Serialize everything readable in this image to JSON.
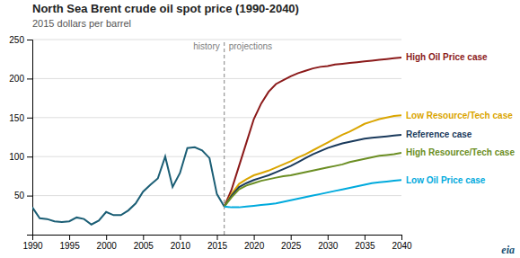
{
  "chart_data": {
    "type": "line",
    "title": "North Sea Brent crude oil spot price (1990-2040)",
    "subtitle": "2015 dollars per barrel",
    "xlim": [
      1990,
      2040
    ],
    "xticks": [
      1990,
      1995,
      2000,
      2005,
      2010,
      2015,
      2020,
      2025,
      2030,
      2035,
      2040
    ],
    "ylim": [
      0,
      250
    ],
    "yticks": [
      50,
      100,
      150,
      200,
      250
    ],
    "grid": true,
    "series": [
      {
        "color": "#1B5E75",
        "x": [
          1990,
          1991,
          1992,
          1993,
          1994,
          1995,
          1996,
          1997,
          1998,
          1999,
          2000,
          2001,
          2002,
          2003,
          2004,
          2005,
          2006,
          2007,
          2008,
          2009,
          2010,
          2011,
          2012,
          2013,
          2014,
          2015,
          2016
        ],
        "values": [
          35,
          21,
          20,
          17,
          16,
          17,
          22,
          20,
          13,
          18,
          29,
          25,
          25,
          31,
          40,
          55,
          64,
          72,
          100,
          61,
          79,
          111,
          112,
          108,
          98,
          52,
          36
        ]
      },
      {
        "name": "High Oil Price case",
        "color": "#8B1A1A",
        "x": [
          2016,
          2017,
          2018,
          2019,
          2020,
          2021,
          2022,
          2023,
          2024,
          2025,
          2026,
          2027,
          2028,
          2029,
          2030,
          2031,
          2032,
          2033,
          2034,
          2035,
          2036,
          2037,
          2038,
          2039,
          2040
        ],
        "values": [
          36,
          58,
          88,
          118,
          148,
          168,
          183,
          193,
          198,
          203,
          207,
          210,
          213,
          215,
          216,
          218,
          219,
          220,
          221,
          222,
          223,
          224,
          225,
          226,
          227
        ]
      },
      {
        "name": "Low Resource/Tech case",
        "color": "#DAA500",
        "x": [
          2016,
          2017,
          2018,
          2019,
          2020,
          2021,
          2022,
          2023,
          2024,
          2025,
          2026,
          2027,
          2028,
          2029,
          2030,
          2031,
          2032,
          2033,
          2034,
          2035,
          2036,
          2037,
          2038,
          2039,
          2040
        ],
        "values": [
          36,
          52,
          65,
          71,
          76,
          79,
          82,
          86,
          90,
          94,
          99,
          103,
          108,
          113,
          118,
          123,
          128,
          132,
          137,
          142,
          145,
          148,
          150,
          152,
          153
        ]
      },
      {
        "name": "Reference case",
        "color": "#1a3a5c",
        "x": [
          2016,
          2017,
          2018,
          2019,
          2020,
          2021,
          2022,
          2023,
          2024,
          2025,
          2026,
          2027,
          2028,
          2029,
          2030,
          2031,
          2032,
          2033,
          2034,
          2035,
          2036,
          2037,
          2038,
          2039,
          2040
        ],
        "values": [
          36,
          50,
          61,
          66,
          70,
          73,
          76,
          80,
          84,
          88,
          93,
          98,
          103,
          107,
          111,
          114,
          117,
          119,
          121,
          123,
          124,
          125,
          126,
          127,
          128
        ]
      },
      {
        "name": "High Resource/Tech case",
        "color": "#6B8E23",
        "x": [
          2016,
          2017,
          2018,
          2019,
          2020,
          2021,
          2022,
          2023,
          2024,
          2025,
          2026,
          2027,
          2028,
          2029,
          2030,
          2031,
          2032,
          2033,
          2034,
          2035,
          2036,
          2037,
          2038,
          2039,
          2040
        ],
        "values": [
          36,
          48,
          58,
          63,
          66,
          69,
          71,
          73,
          75,
          76,
          78,
          80,
          82,
          84,
          86,
          88,
          90,
          93,
          95,
          97,
          99,
          101,
          102,
          103,
          105
        ]
      },
      {
        "name": "Low Oil Price case",
        "color": "#00AADD",
        "x": [
          2016,
          2017,
          2018,
          2019,
          2020,
          2021,
          2022,
          2023,
          2024,
          2025,
          2026,
          2027,
          2028,
          2029,
          2030,
          2031,
          2032,
          2033,
          2034,
          2035,
          2036,
          2037,
          2038,
          2039,
          2040
        ],
        "values": [
          36,
          35,
          35,
          36,
          37,
          38,
          39,
          40,
          42,
          44,
          46,
          48,
          50,
          52,
          54,
          56,
          58,
          60,
          62,
          64,
          66,
          67,
          68,
          69,
          70
        ]
      }
    ],
    "annotations": [
      {
        "x": 2016,
        "line_style": "dashed",
        "texts": [
          "history",
          "projections"
        ]
      },
      {
        "text": "eia"
      }
    ]
  }
}
